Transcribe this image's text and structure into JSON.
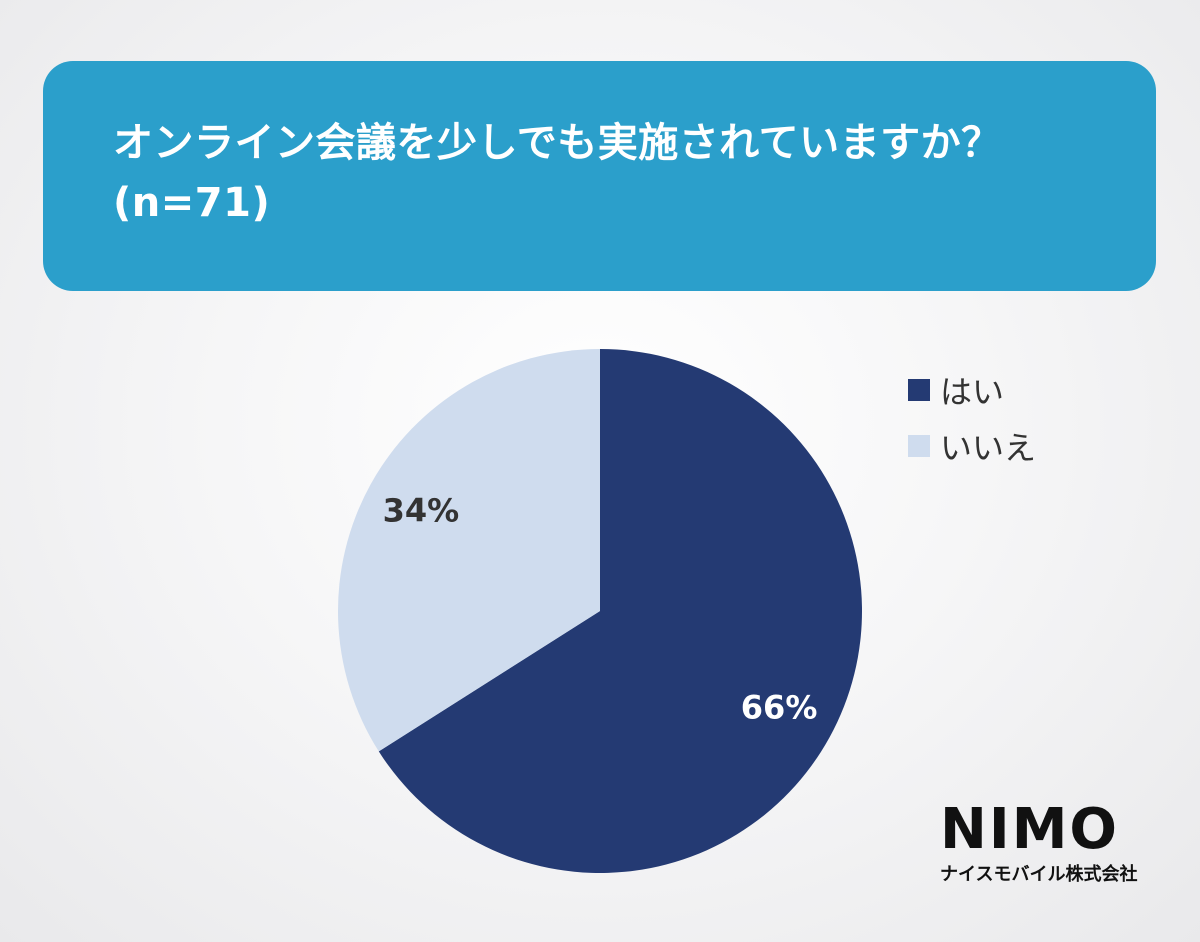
{
  "header": {
    "title_line1": "オンライン会議を少しでも実施されていますか？",
    "title_line2": "(n=71)",
    "banner_color": "#2b9fcb"
  },
  "chart_data": {
    "type": "pie",
    "categories": [
      "はい",
      "いいえ"
    ],
    "values": [
      66,
      34
    ],
    "value_labels": [
      "66%",
      "34%"
    ],
    "colors": [
      "#243a73",
      "#cfdcee"
    ],
    "label_colors": [
      "#ffffff",
      "#333333"
    ],
    "start": "12 o'clock, clockwise",
    "legend_position": "top-right"
  },
  "logo": {
    "mark": "NIMO",
    "company": "ナイスモバイル株式会社"
  }
}
